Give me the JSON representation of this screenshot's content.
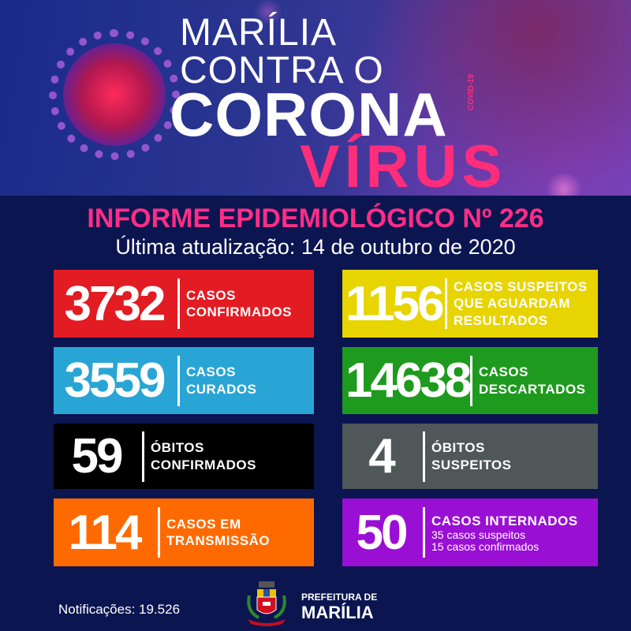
{
  "header": {
    "line1": "MARÍLIA",
    "line2": "CONTRA O",
    "line3": "CORONA",
    "line3_tag": "COVID-19",
    "line4": "VÍRUS"
  },
  "report": {
    "title": "INFORME EPIDEMIOLÓGICO Nº 226",
    "updated": "Última atualização: 14 de outubro de 2020"
  },
  "cards": [
    {
      "value": "3732",
      "label1": "CASOS",
      "label2": "CONFIRMADOS",
      "color": "#e31b23"
    },
    {
      "value": "1156",
      "label1": "CASOS SUSPEITOS",
      "label2": "QUE AGUARDAM",
      "label3": "RESULTADOS",
      "color": "#e8d400"
    },
    {
      "value": "3559",
      "label1": "CASOS",
      "label2": "CURADOS",
      "color": "#29a5d5"
    },
    {
      "value": "14638",
      "label1": "CASOS",
      "label2": "DESCARTADOS",
      "color": "#1e9a1e"
    },
    {
      "value": "59",
      "label1": "ÓBITOS",
      "label2": "CONFIRMADOS",
      "color": "#000000"
    },
    {
      "value": "4",
      "label1": "ÓBITOS",
      "label2": "SUSPEITOS",
      "color": "#4f5759"
    },
    {
      "value": "114",
      "label1": "CASOS EM",
      "label2": "TRANSMISSÃO",
      "color": "#ff6a00"
    },
    {
      "value": "50",
      "label1": "CASOS INTERNADOS",
      "sub1": "35 casos suspeitos",
      "sub2": "15 casos confirmados",
      "color": "#9a0fd4"
    }
  ],
  "footer": {
    "notifications": "Notificações: 19.526",
    "logo_line1": "PREFEITURA DE",
    "logo_line2": "MARÍLIA"
  }
}
